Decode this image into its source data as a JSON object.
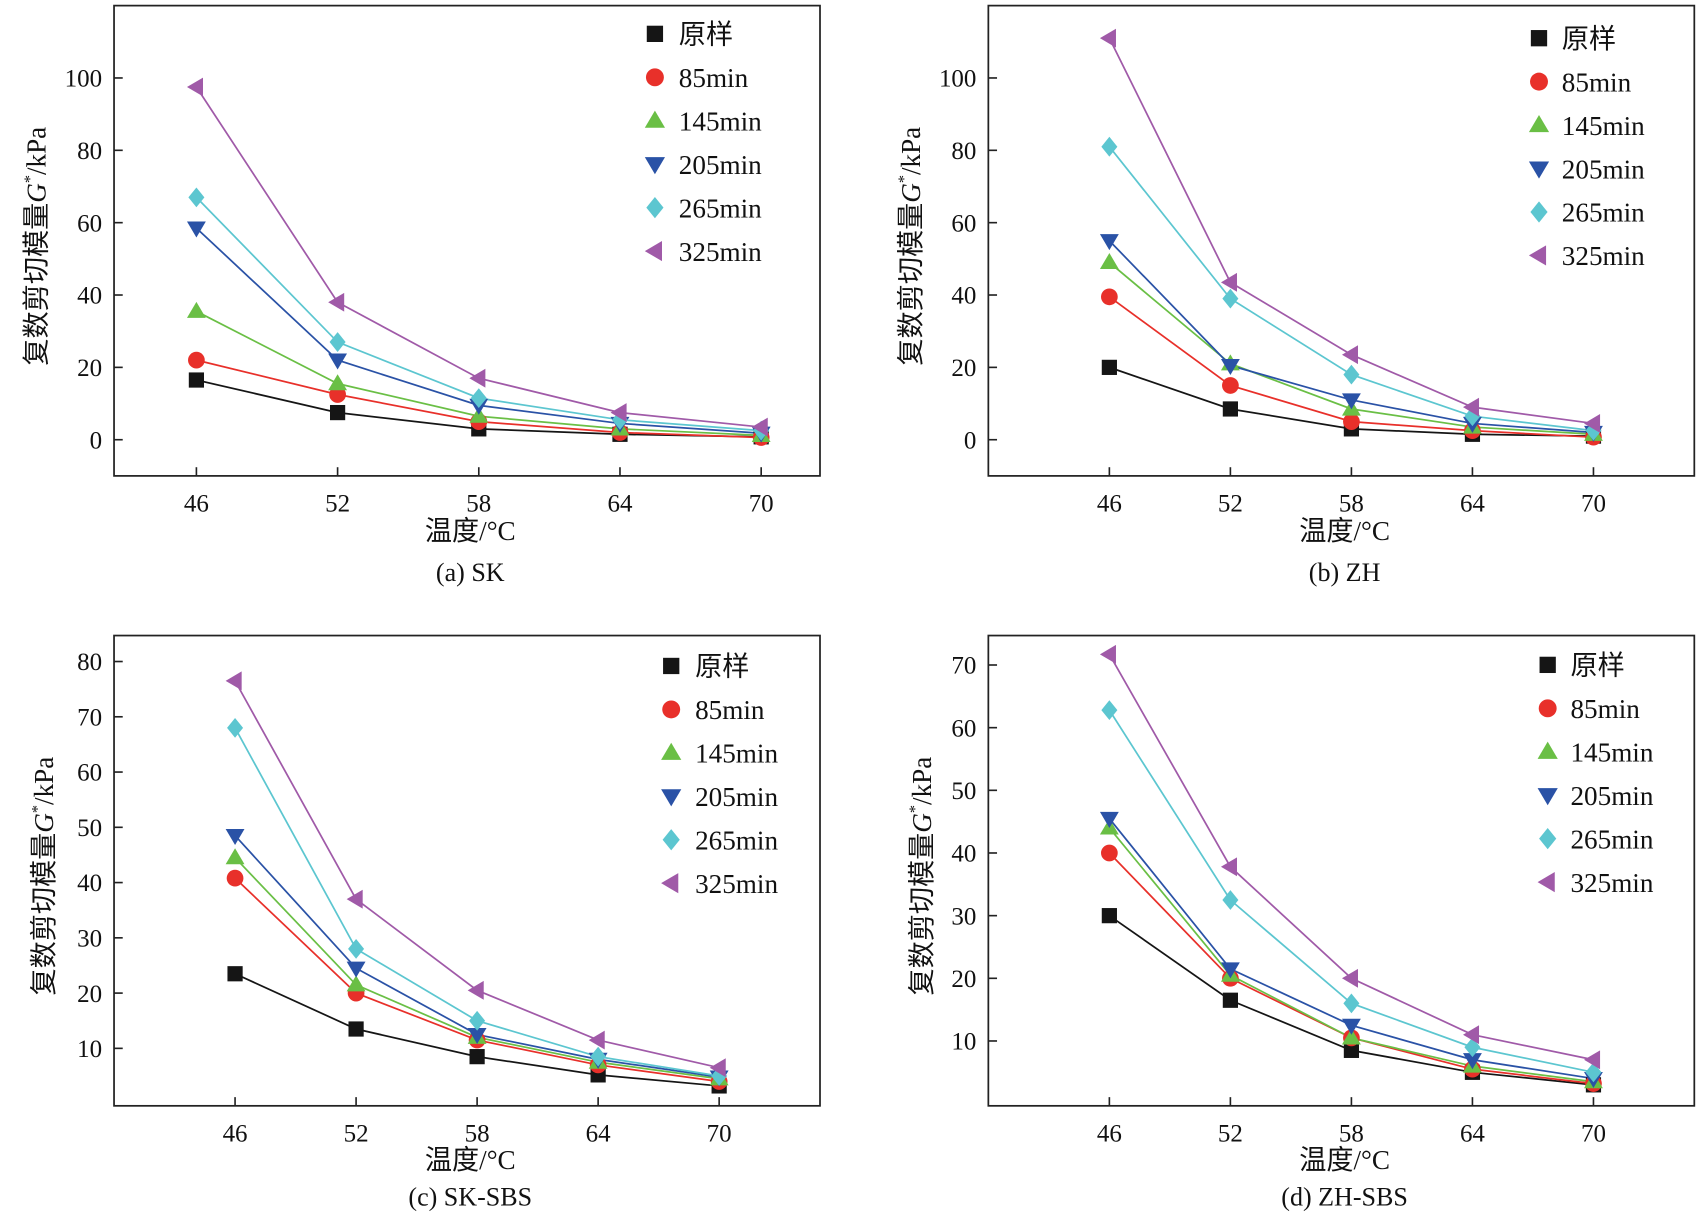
{
  "styles": {
    "series_colors": [
      "#151515",
      "#e8302a",
      "#6abf45",
      "#2a52a6",
      "#5cc6d0",
      "#a05aa8"
    ],
    "series_markers": [
      "square",
      "circle",
      "triangle-up",
      "triangle-down",
      "diamond",
      "triangle-left"
    ]
  },
  "chart_data": [
    {
      "type": "line",
      "caption": "(a) SK",
      "xlabel": "温度/°C",
      "ylabel": {
        "prefix": "复数剪切模量",
        "symbol": "G",
        "sup": "*",
        "unit": "/kPa"
      },
      "x": [
        46,
        52,
        58,
        64,
        70
      ],
      "xticks": [
        "46",
        "52",
        "58",
        "64",
        "70"
      ],
      "xlim": [
        42.5,
        72.5
      ],
      "yticks": [
        0,
        20,
        40,
        60,
        80,
        100
      ],
      "ylim": [
        -10,
        120
      ],
      "legend_position": "top-right",
      "series": [
        {
          "name": "原样",
          "values": [
            16.5,
            7.5,
            3,
            1.5,
            0.8
          ]
        },
        {
          "name": "85min",
          "values": [
            22,
            12.5,
            5,
            2,
            0.6
          ]
        },
        {
          "name": "145min",
          "values": [
            35.5,
            15.5,
            6.5,
            3,
            1.2
          ]
        },
        {
          "name": "205min",
          "values": [
            58.5,
            22,
            9.5,
            4.5,
            1.8
          ]
        },
        {
          "name": "265min",
          "values": [
            67,
            27,
            11.5,
            5.5,
            2.5
          ]
        },
        {
          "name": "325min",
          "values": [
            97.5,
            38,
            17,
            7.5,
            3.5
          ]
        }
      ]
    },
    {
      "type": "line",
      "caption": "(b) ZH",
      "xlabel": "温度/°C",
      "ylabel": {
        "prefix": "复数剪切模量",
        "symbol": "G",
        "sup": "*",
        "unit": "/kPa"
      },
      "x": [
        46,
        52,
        58,
        64,
        70
      ],
      "xticks": [
        "46",
        "52",
        "58",
        "64",
        "70"
      ],
      "xlim": [
        40,
        75
      ],
      "yticks": [
        0,
        20,
        40,
        60,
        80,
        100
      ],
      "ylim": [
        -10,
        120
      ],
      "legend_position": "top-right",
      "series": [
        {
          "name": "原样",
          "values": [
            20,
            8.5,
            3,
            1.5,
            1
          ]
        },
        {
          "name": "85min",
          "values": [
            39.5,
            15,
            5,
            2.5,
            0.7
          ]
        },
        {
          "name": "145min",
          "values": [
            49,
            21,
            8.5,
            3.5,
            1.5
          ]
        },
        {
          "name": "205min",
          "values": [
            55,
            20.5,
            11,
            4.5,
            2
          ]
        },
        {
          "name": "265min",
          "values": [
            81,
            39,
            18,
            6.5,
            2.5
          ]
        },
        {
          "name": "325min",
          "values": [
            111,
            43.5,
            23.5,
            9,
            4.5
          ]
        }
      ]
    },
    {
      "type": "line",
      "caption": "(c) SK-SBS",
      "xlabel": "温度/°C",
      "ylabel": {
        "prefix": "复数剪切模量",
        "symbol": "G",
        "sup": "*",
        "unit": "/kPa"
      },
      "x": [
        46,
        52,
        58,
        64,
        70
      ],
      "xticks": [
        "46",
        "52",
        "58",
        "64",
        "70"
      ],
      "xlim": [
        40,
        75
      ],
      "yticks": [
        10,
        20,
        30,
        40,
        50,
        60,
        70,
        80
      ],
      "ylim": [
        -0.4,
        84.7
      ],
      "legend_position": "top-right",
      "series": [
        {
          "name": "原样",
          "values": [
            23.5,
            13.5,
            8.5,
            5.2,
            3.2
          ]
        },
        {
          "name": "85min",
          "values": [
            40.8,
            20,
            11.5,
            7,
            4
          ]
        },
        {
          "name": "145min",
          "values": [
            44.5,
            21.5,
            12,
            7.5,
            4.5
          ]
        },
        {
          "name": "205min",
          "values": [
            48.5,
            24.5,
            12.5,
            8,
            4.8
          ]
        },
        {
          "name": "265min",
          "values": [
            68,
            28,
            15,
            8.5,
            5
          ]
        },
        {
          "name": "325min",
          "values": [
            76.5,
            37,
            20.5,
            11.5,
            6.5
          ]
        }
      ]
    },
    {
      "type": "line",
      "caption": "(d) ZH-SBS",
      "xlabel": "温度/°C",
      "ylabel": {
        "prefix": "复数剪切模量",
        "symbol": "G",
        "sup": "*",
        "unit": "/kPa"
      },
      "x": [
        46,
        52,
        58,
        64,
        70
      ],
      "xticks": [
        "46",
        "52",
        "58",
        "64",
        "70"
      ],
      "xlim": [
        40,
        75
      ],
      "yticks": [
        10,
        20,
        30,
        40,
        50,
        60,
        70
      ],
      "ylim": [
        -0.35,
        74.7
      ],
      "legend_position": "top-right",
      "series": [
        {
          "name": "原样",
          "values": [
            30,
            16.5,
            8.5,
            5,
            3
          ]
        },
        {
          "name": "85min",
          "values": [
            40,
            20,
            10.5,
            5.5,
            3.2
          ]
        },
        {
          "name": "145min",
          "values": [
            44,
            20.5,
            10.5,
            6,
            3.5
          ]
        },
        {
          "name": "205min",
          "values": [
            45.5,
            21.5,
            12.5,
            7,
            4
          ]
        },
        {
          "name": "265min",
          "values": [
            62.8,
            32.5,
            16,
            9,
            5
          ]
        },
        {
          "name": "325min",
          "values": [
            71.7,
            37.8,
            20,
            11,
            7
          ]
        }
      ]
    }
  ]
}
